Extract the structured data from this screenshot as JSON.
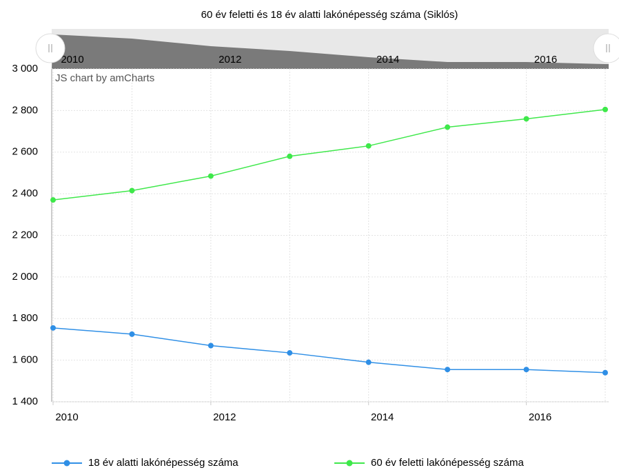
{
  "chart_data": {
    "type": "line",
    "title": "60 év feletti és 18 év alatti lakónépesség száma (Siklós)",
    "credit": "JS chart by amCharts",
    "x": [
      2010,
      2011,
      2012,
      2013,
      2014,
      2015,
      2016,
      2017
    ],
    "xlim": [
      2010,
      2017
    ],
    "xticks": [
      2010,
      2012,
      2014,
      2016
    ],
    "ylim": [
      1400,
      3000
    ],
    "yticks": [
      {
        "value": 1400,
        "label": "1 400"
      },
      {
        "value": 1600,
        "label": "1 600"
      },
      {
        "value": 1800,
        "label": "1 800"
      },
      {
        "value": 2000,
        "label": "2 000"
      },
      {
        "value": 2200,
        "label": "2 200"
      },
      {
        "value": 2400,
        "label": "2 400"
      },
      {
        "value": 2600,
        "label": "2 600"
      },
      {
        "value": 2800,
        "label": "2 800"
      },
      {
        "value": 3000,
        "label": "3 000"
      }
    ],
    "grid": true,
    "legend": "bottom",
    "series": [
      {
        "name": "18 év alatti lakónépesség száma",
        "color": "#2f8fe6",
        "values": [
          1755,
          1725,
          1670,
          1635,
          1590,
          1555,
          1555,
          1540
        ]
      },
      {
        "name": "60 év feletti lakónépesség száma",
        "color": "#3ee84a",
        "values": [
          2370,
          2415,
          2485,
          2580,
          2630,
          2720,
          2760,
          2805
        ]
      }
    ]
  }
}
